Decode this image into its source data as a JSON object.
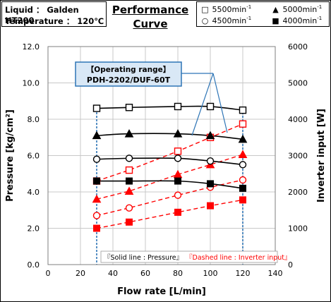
{
  "info": {
    "liquid": "Liquid ： Galden HT200",
    "temperature": "Temperature ： 120℃"
  },
  "title": {
    "line1": "Performance",
    "line2": "Curve"
  },
  "legend": [
    {
      "text": "5500min",
      "sup": "-1",
      "marker": "□",
      "icon": "open-square"
    },
    {
      "text": "5000min",
      "sup": "-1",
      "marker": "▲",
      "icon": "filled-triangle"
    },
    {
      "text": "4500min",
      "sup": "-1",
      "marker": "○",
      "icon": "open-circle"
    },
    {
      "text": "4000min",
      "sup": "-1",
      "marker": "■",
      "icon": "filled-square"
    }
  ],
  "annotations": {
    "operating_range_title": "【Operating range】",
    "operating_range_model": "PDH-2202/DUF-60T",
    "solid_note": "『Solid line : Pressure』",
    "dashed_note": "『Dashed line : Inverter input』"
  },
  "colors": {
    "pressure": "#000000",
    "inverter": "#ff0000",
    "operating_range_border": "#2e75b6",
    "operating_range_fill": "#d9e8f6",
    "range_line": "#2e75b6",
    "grid": "#c8c8c8"
  },
  "chart_data": {
    "type": "line",
    "xlabel": "Flow rate [L/min]",
    "ylabel": "Pressure [kg/cm²]",
    "y2label": "Inverter input [W]",
    "xlim": [
      0,
      140
    ],
    "ylim": [
      0,
      12
    ],
    "y2lim": [
      0,
      6000
    ],
    "xticks": [
      "0",
      "20",
      "40",
      "60",
      "80",
      "100",
      "120",
      "140"
    ],
    "yticks": [
      "0.0",
      "2.0",
      "4.0",
      "6.0",
      "8.0",
      "10.0",
      "12.0"
    ],
    "y2ticks": [
      "0",
      "1000",
      "2000",
      "3000",
      "4000",
      "5000",
      "6000"
    ],
    "grid": true,
    "operating_range_x": [
      30,
      120
    ],
    "pressure_series": [
      {
        "name": "5500min-1",
        "marker": "open-square",
        "x": [
          30,
          50,
          80,
          100,
          120
        ],
        "y": [
          8.6,
          8.65,
          8.7,
          8.7,
          8.5
        ]
      },
      {
        "name": "5000min-1",
        "marker": "filled-triangle",
        "x": [
          30,
          50,
          80,
          100,
          120
        ],
        "y": [
          7.1,
          7.2,
          7.2,
          7.1,
          6.9
        ]
      },
      {
        "name": "4500min-1",
        "marker": "open-circle",
        "x": [
          30,
          50,
          80,
          100,
          120
        ],
        "y": [
          5.8,
          5.85,
          5.85,
          5.7,
          5.5
        ]
      },
      {
        "name": "4000min-1",
        "marker": "filled-square",
        "x": [
          30,
          50,
          80,
          100,
          120
        ],
        "y": [
          4.6,
          4.6,
          4.6,
          4.45,
          4.2
        ]
      }
    ],
    "inverter_series": [
      {
        "name": "5500min-1",
        "marker": "open-square",
        "x": [
          30,
          50,
          80,
          100,
          120
        ],
        "y": [
          2300,
          2600,
          3120,
          3500,
          3870
        ]
      },
      {
        "name": "5000min-1",
        "marker": "filled-triangle",
        "x": [
          30,
          50,
          80,
          100,
          120
        ],
        "y": [
          1800,
          2020,
          2480,
          2750,
          3030
        ]
      },
      {
        "name": "4500min-1",
        "marker": "open-circle",
        "x": [
          30,
          50,
          80,
          100,
          120
        ],
        "y": [
          1350,
          1560,
          1910,
          2130,
          2330
        ]
      },
      {
        "name": "4000min-1",
        "marker": "filled-square",
        "x": [
          30,
          50,
          80,
          100,
          120
        ],
        "y": [
          1000,
          1170,
          1440,
          1620,
          1780
        ]
      }
    ]
  }
}
